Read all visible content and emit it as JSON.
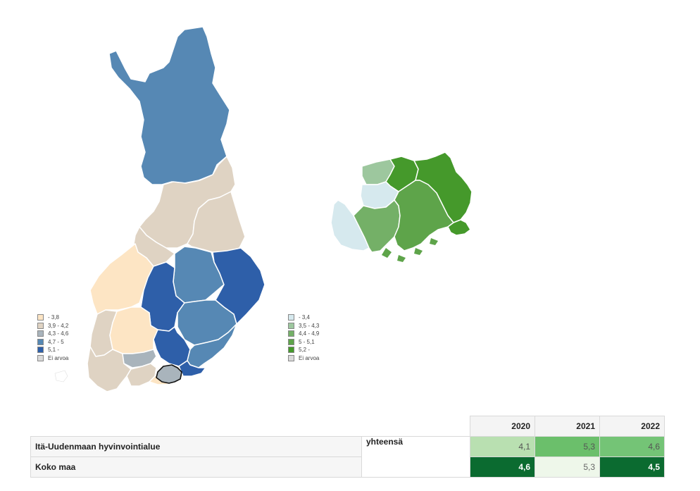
{
  "legend_left": {
    "items": [
      {
        "label": "- 3,8",
        "color": "#fde5c4"
      },
      {
        "label": "3,9 - 4,2",
        "color": "#dfd3c3"
      },
      {
        "label": "4,3 - 4,6",
        "color": "#a9b4bc"
      },
      {
        "label": "4,7 - 5",
        "color": "#5688b4"
      },
      {
        "label": "5,1 -",
        "color": "#2e5fa9"
      },
      {
        "label": "Ei arvoa",
        "color": "#dadada"
      }
    ]
  },
  "legend_right": {
    "items": [
      {
        "label": "- 3,4",
        "color": "#d6e9ee"
      },
      {
        "label": "3,5 - 4,3",
        "color": "#9dc79e"
      },
      {
        "label": "4,4 - 4,9",
        "color": "#74b067"
      },
      {
        "label": "5 - 5,1",
        "color": "#5ea44a"
      },
      {
        "label": "5,2 -",
        "color": "#45992b"
      },
      {
        "label": "Ei arvoa",
        "color": "#dadada"
      }
    ]
  },
  "table": {
    "years": [
      "2020",
      "2021",
      "2022"
    ],
    "group_label": "yhteensä",
    "rows": [
      {
        "label": "Itä-Uudenmaan hyvinvointialue",
        "values": [
          "4,1",
          "5,3",
          "4,6"
        ],
        "colors": [
          "#b9e0b1",
          "#6bbf6b",
          "#74c476"
        ],
        "text_colors": [
          "#555555",
          "#555555",
          "#555555"
        ]
      },
      {
        "label": "Koko maa",
        "values": [
          "4,6",
          "5,3",
          "4,5"
        ],
        "colors": [
          "#0b6b30",
          "#eef7ea",
          "#0b6b30"
        ],
        "text_colors": [
          "#ffffff",
          "#666666",
          "#ffffff"
        ]
      }
    ]
  }
}
